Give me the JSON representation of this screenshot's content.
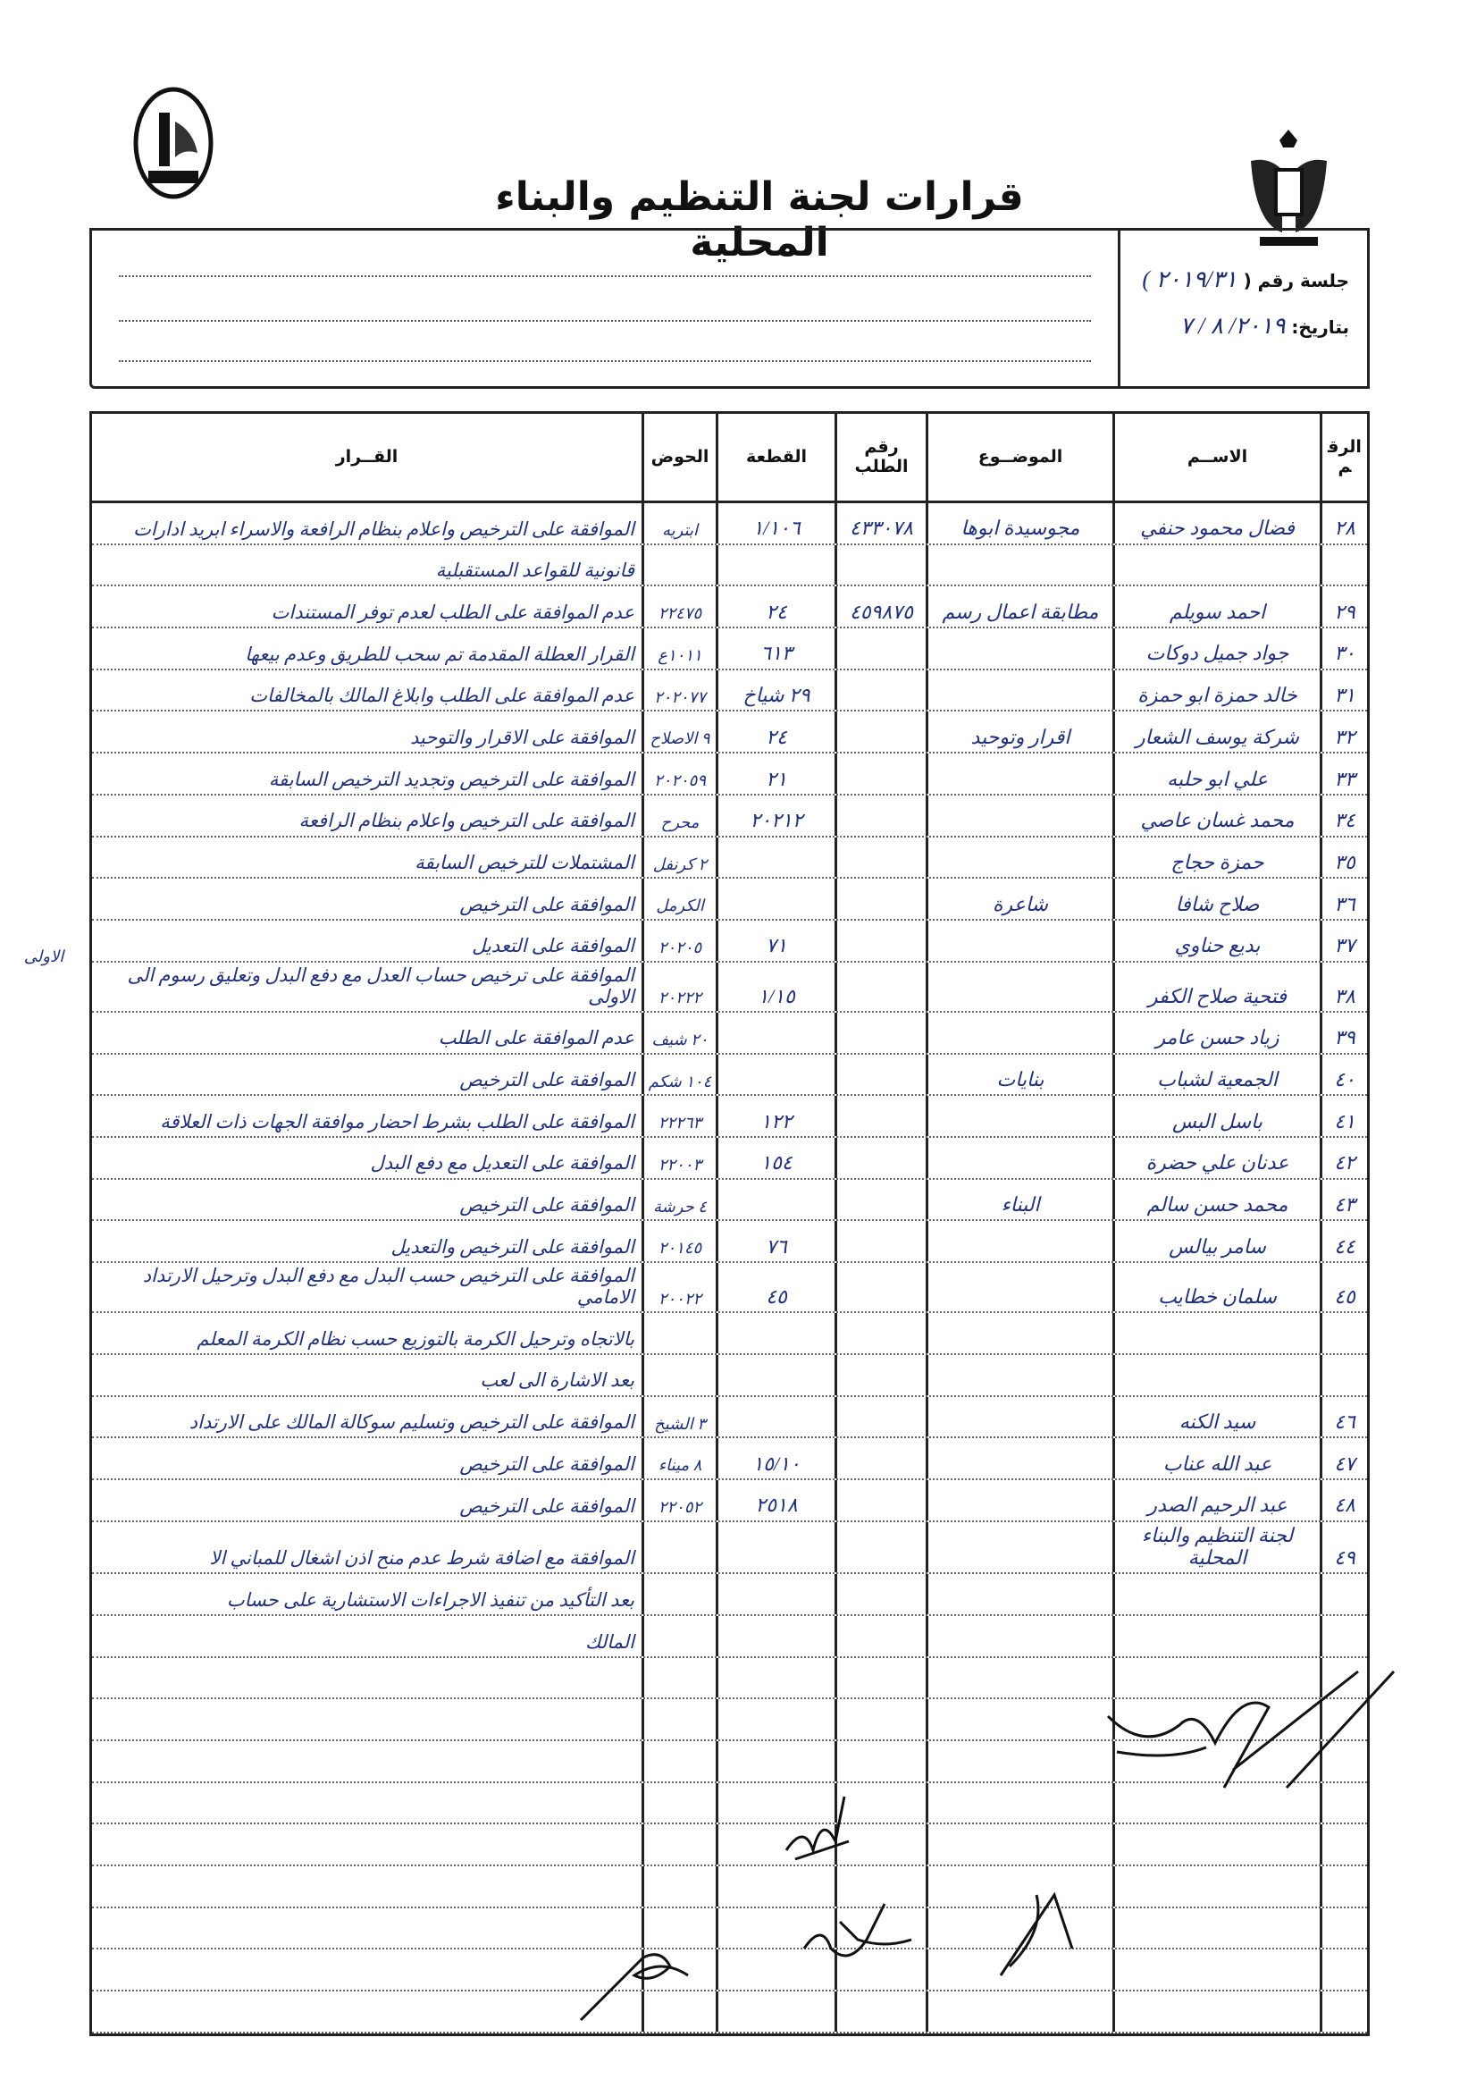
{
  "document": {
    "title": "قرارات لجنة التنظيم والبناء المحلية",
    "session_label": "جلسة رقم (",
    "session_value": "٢٠١٩/٣١ )",
    "date_label": "بتاريخ:",
    "date_value": "٢٠١٩/ ٨ / ٧",
    "ink_color": "#22327a"
  },
  "table": {
    "headers": {
      "num": "الرقم",
      "name": "الاســم",
      "subject": "الموضــوع",
      "request_no": "رقم الطلب",
      "plot": "القطعة",
      "basin": "الحوض",
      "decision": "القــرار"
    },
    "rows": [
      {
        "num": "٢٨",
        "name": "فضال محمود حنفي",
        "subject": "مجوسيدة ابوها",
        "request_no": "٤٣٣٠٧٨",
        "plot": "١/١٠٦",
        "basin": "ابتريه",
        "decision": "الموافقة على الترخيص واعلام بنظام الرافعة والاسراء ابريد ادارات"
      },
      {
        "num": "",
        "name": "",
        "subject": "",
        "request_no": "",
        "plot": "",
        "basin": "",
        "decision": "قانونية للقواعد المستقبلية"
      },
      {
        "num": "٢٩",
        "name": "احمد سويلم",
        "subject": "مطابقة اعمال رسم",
        "request_no": "٤٥٩٨٧٥",
        "plot": "٢٤",
        "basin": "٢٢٤٧٥",
        "decision": "عدم الموافقة على الطلب لعدم توفر المستندات"
      },
      {
        "num": "٣٠",
        "name": "جواد جميل دوكات",
        "subject": "",
        "request_no": "",
        "plot": "٦١٣",
        "basin": "١٠١١ع",
        "decision": "القرار العطلة المقدمة تم سحب للطريق وعدم بيعها"
      },
      {
        "num": "٣١",
        "name": "خالد حمزة ابو حمزة",
        "subject": "",
        "request_no": "",
        "plot": "٢٩ شياخ",
        "basin": "٢٠٢٠٧٧",
        "decision": "عدم الموافقة على الطلب وابلاغ المالك بالمخالفات"
      },
      {
        "num": "٣٢",
        "name": "شركة يوسف الشعار",
        "subject": "اقرار وتوحيد",
        "request_no": "",
        "plot": "٢٤",
        "basin": "٩ الاصلاح",
        "decision": "الموافقة على الاقرار والتوحيد"
      },
      {
        "num": "٣٣",
        "name": "علي ابو حلبه",
        "subject": "",
        "request_no": "",
        "plot": "٢١",
        "basin": "٢٠٢٠٥٩",
        "decision": "الموافقة على الترخيص وتجديد الترخيص السابقة"
      },
      {
        "num": "٣٤",
        "name": "محمد غسان عاصي",
        "subject": "",
        "request_no": "",
        "plot": "٢٠٢١٢",
        "basin": "محرح",
        "decision": "الموافقة على الترخيص واعلام بنظام الرافعة"
      },
      {
        "num": "٣٥",
        "name": "حمزة حجاج",
        "subject": "",
        "request_no": "",
        "plot": "",
        "basin": "٢ كرنفل",
        "decision": "المشتملات للترخيص السابقة"
      },
      {
        "num": "٣٦",
        "name": "صلاح شافا",
        "subject": "شاعرة",
        "request_no": "",
        "plot": "",
        "basin": "الكرمل",
        "decision": "الموافقة على الترخيص"
      },
      {
        "num": "٣٧",
        "name": "بديع حناوي",
        "subject": "",
        "request_no": "",
        "plot": "٧١",
        "basin": "٢٠٢٠٥",
        "decision": "الموافقة على التعديل"
      },
      {
        "num": "٣٨",
        "name": "فتحية صلاح الكفر",
        "subject": "",
        "request_no": "",
        "plot": "١/١٥",
        "basin": "٢٠٢٢٢",
        "decision": "الموافقة على ترخيص حساب العدل مع دفع البدل وتعليق رسوم الى الاولى"
      },
      {
        "num": "٣٩",
        "name": "زياد حسن عامر",
        "subject": "",
        "request_no": "",
        "plot": "",
        "basin": "٢٠ شيف",
        "decision": "عدم الموافقة على الطلب"
      },
      {
        "num": "٤٠",
        "name": "الجمعية لشباب",
        "subject": "بنايات",
        "request_no": "",
        "plot": "",
        "basin": "١٠٤ شكم",
        "decision": "الموافقة على الترخيص"
      },
      {
        "num": "٤١",
        "name": "باسل البس",
        "subject": "",
        "request_no": "",
        "plot": "١٢٢",
        "basin": "٢٢٢٦٣",
        "decision": "الموافقة على الطلب بشرط احضار موافقة الجهات ذات العلاقة"
      },
      {
        "num": "٤٢",
        "name": "عدنان علي حضرة",
        "subject": "",
        "request_no": "",
        "plot": "١٥٤",
        "basin": "٢٢٠٠٣",
        "decision": "الموافقة على التعديل مع دفع البدل"
      },
      {
        "num": "٤٣",
        "name": "محمد حسن سالم",
        "subject": "البناء",
        "request_no": "",
        "plot": "",
        "basin": "٤ حرشة",
        "decision": "الموافقة على الترخيص"
      },
      {
        "num": "٤٤",
        "name": "سامر بيالس",
        "subject": "",
        "request_no": "",
        "plot": "٧٦",
        "basin": "٢٠١٤٥",
        "decision": "الموافقة على الترخيص والتعديل"
      },
      {
        "num": "٤٥",
        "name": "سلمان خطايب",
        "subject": "",
        "request_no": "",
        "plot": "٤٥",
        "basin": "٢٠٠٢٢",
        "decision": "الموافقة على الترخيص حسب البدل مع دفع البدل وترحيل الارتداد الامامي"
      },
      {
        "num": "",
        "name": "",
        "subject": "",
        "request_no": "",
        "plot": "",
        "basin": "",
        "decision": "بالاتجاه وترحيل الكرمة بالتوزيع حسب نظام الكرمة المعلم"
      },
      {
        "num": "",
        "name": "",
        "subject": "",
        "request_no": "",
        "plot": "",
        "basin": "",
        "decision": "بعد الاشارة الى لعب"
      },
      {
        "num": "٤٦",
        "name": "سيد الكنه",
        "subject": "",
        "request_no": "",
        "plot": "",
        "basin": "٣ الشيخ",
        "decision": "الموافقة على الترخيص وتسليم سوكالة المالك على الارتداد"
      },
      {
        "num": "٤٧",
        "name": "عبد الله عناب",
        "subject": "",
        "request_no": "",
        "plot": "١٥/١٠",
        "basin": "٨ ميناء",
        "decision": "الموافقة على الترخيص"
      },
      {
        "num": "٤٨",
        "name": "عبد الرحيم الصدر",
        "subject": "",
        "request_no": "",
        "plot": "٢٥١٨",
        "basin": "٢٢٠٥٢",
        "decision": "الموافقة على الترخيص"
      },
      {
        "num": "٤٩",
        "name": "لجنة التنظيم والبناء المحلية",
        "subject": "",
        "request_no": "",
        "plot": "",
        "basin": "",
        "decision": "الموافقة مع اضافة شرط عدم منح اذن اشغال للمباني الا"
      },
      {
        "num": "",
        "name": "",
        "subject": "",
        "request_no": "",
        "plot": "",
        "basin": "",
        "decision": "بعد التأكيد من تنفيذ الاجراءات الاستشارية على حساب"
      },
      {
        "num": "",
        "name": "",
        "subject": "",
        "request_no": "",
        "plot": "",
        "basin": "",
        "decision": "المالك"
      }
    ],
    "margin_note": "الاولى"
  }
}
